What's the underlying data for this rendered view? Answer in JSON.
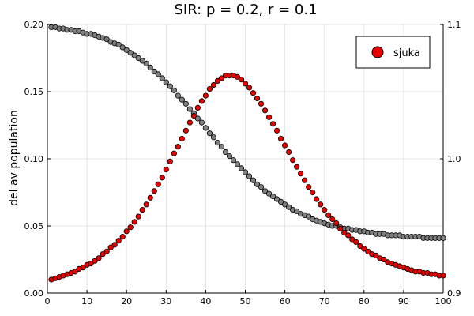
{
  "chart_data": {
    "type": "scatter",
    "title": "SIR: p = 0.2, r =  0.1",
    "xlabel": "",
    "ylabel": "del av population",
    "xlim": [
      0,
      100
    ],
    "ylim": [
      0,
      0.2
    ],
    "y2lim": [
      0.9,
      1.1
    ],
    "grid": true,
    "legend_position": "top-right",
    "x_ticks": [
      0,
      10,
      20,
      30,
      40,
      50,
      60,
      70,
      80,
      90,
      100
    ],
    "x_tick_labels": [
      "0",
      "10",
      "20",
      "30",
      "40",
      "50",
      "60",
      "70",
      "80",
      "90",
      "100"
    ],
    "y_ticks": [
      0,
      0.05,
      0.1,
      0.15,
      0.2
    ],
    "y_tick_labels": [
      "0.00",
      "0.05",
      "0.10",
      "0.15",
      "0.20"
    ],
    "y2_ticks": [
      0.9,
      1.0,
      1.1
    ],
    "y2_tick_labels": [
      "0.9",
      "1.0",
      "1.1"
    ],
    "series": [
      {
        "name": "sjuka",
        "color": "#e60000",
        "axis": "left",
        "x": [
          1,
          2,
          3,
          4,
          5,
          6,
          7,
          8,
          9,
          10,
          11,
          12,
          13,
          14,
          15,
          16,
          17,
          18,
          19,
          20,
          21,
          22,
          23,
          24,
          25,
          26,
          27,
          28,
          29,
          30,
          31,
          32,
          33,
          34,
          35,
          36,
          37,
          38,
          39,
          40,
          41,
          42,
          43,
          44,
          45,
          46,
          47,
          48,
          49,
          50,
          51,
          52,
          53,
          54,
          55,
          56,
          57,
          58,
          59,
          60,
          61,
          62,
          63,
          64,
          65,
          66,
          67,
          68,
          69,
          70,
          71,
          72,
          73,
          74,
          75,
          76,
          77,
          78,
          79,
          80,
          81,
          82,
          83,
          84,
          85,
          86,
          87,
          88,
          89,
          90,
          91,
          92,
          93,
          94,
          95,
          96,
          97,
          98,
          99,
          100
        ],
        "values": [
          0.01,
          0.011,
          0.012,
          0.013,
          0.014,
          0.015,
          0.016,
          0.018,
          0.019,
          0.021,
          0.022,
          0.024,
          0.026,
          0.029,
          0.031,
          0.034,
          0.036,
          0.039,
          0.042,
          0.046,
          0.049,
          0.053,
          0.057,
          0.062,
          0.066,
          0.071,
          0.076,
          0.081,
          0.086,
          0.092,
          0.098,
          0.104,
          0.109,
          0.115,
          0.121,
          0.127,
          0.132,
          0.138,
          0.143,
          0.147,
          0.152,
          0.155,
          0.158,
          0.16,
          0.162,
          0.162,
          0.162,
          0.161,
          0.159,
          0.156,
          0.153,
          0.149,
          0.145,
          0.141,
          0.136,
          0.131,
          0.126,
          0.121,
          0.115,
          0.11,
          0.105,
          0.099,
          0.094,
          0.089,
          0.084,
          0.079,
          0.075,
          0.07,
          0.066,
          0.062,
          0.058,
          0.055,
          0.052,
          0.048,
          0.045,
          0.043,
          0.04,
          0.038,
          0.035,
          0.033,
          0.031,
          0.029,
          0.028,
          0.026,
          0.025,
          0.023,
          0.022,
          0.021,
          0.02,
          0.019,
          0.018,
          0.017,
          0.016,
          0.016,
          0.015,
          0.015,
          0.014,
          0.014,
          0.013,
          0.013
        ]
      },
      {
        "name": "",
        "color": "#808080",
        "axis": "left",
        "x": [
          1,
          2,
          3,
          4,
          5,
          6,
          7,
          8,
          9,
          10,
          11,
          12,
          13,
          14,
          15,
          16,
          17,
          18,
          19,
          20,
          21,
          22,
          23,
          24,
          25,
          26,
          27,
          28,
          29,
          30,
          31,
          32,
          33,
          34,
          35,
          36,
          37,
          38,
          39,
          40,
          41,
          42,
          43,
          44,
          45,
          46,
          47,
          48,
          49,
          50,
          51,
          52,
          53,
          54,
          55,
          56,
          57,
          58,
          59,
          60,
          61,
          62,
          63,
          64,
          65,
          66,
          67,
          68,
          69,
          70,
          71,
          72,
          73,
          74,
          75,
          76,
          77,
          78,
          79,
          80,
          81,
          82,
          83,
          84,
          85,
          86,
          87,
          88,
          89,
          90,
          91,
          92,
          93,
          94,
          95,
          96,
          97,
          98,
          99,
          100
        ],
        "values": [
          0.198,
          0.198,
          0.197,
          0.197,
          0.196,
          0.196,
          0.195,
          0.195,
          0.194,
          0.193,
          0.193,
          0.192,
          0.191,
          0.19,
          0.189,
          0.187,
          0.186,
          0.185,
          0.183,
          0.181,
          0.179,
          0.177,
          0.175,
          0.173,
          0.171,
          0.168,
          0.165,
          0.163,
          0.16,
          0.157,
          0.154,
          0.151,
          0.147,
          0.144,
          0.141,
          0.137,
          0.134,
          0.13,
          0.127,
          0.123,
          0.119,
          0.116,
          0.112,
          0.109,
          0.105,
          0.102,
          0.099,
          0.096,
          0.093,
          0.09,
          0.087,
          0.084,
          0.081,
          0.079,
          0.076,
          0.074,
          0.072,
          0.07,
          0.068,
          0.066,
          0.064,
          0.062,
          0.061,
          0.059,
          0.058,
          0.057,
          0.055,
          0.054,
          0.053,
          0.052,
          0.051,
          0.05,
          0.05,
          0.049,
          0.048,
          0.048,
          0.047,
          0.047,
          0.046,
          0.046,
          0.045,
          0.045,
          0.044,
          0.044,
          0.044,
          0.043,
          0.043,
          0.043,
          0.043,
          0.042,
          0.042,
          0.042,
          0.042,
          0.042,
          0.041,
          0.041,
          0.041,
          0.041,
          0.041,
          0.041
        ]
      }
    ]
  }
}
